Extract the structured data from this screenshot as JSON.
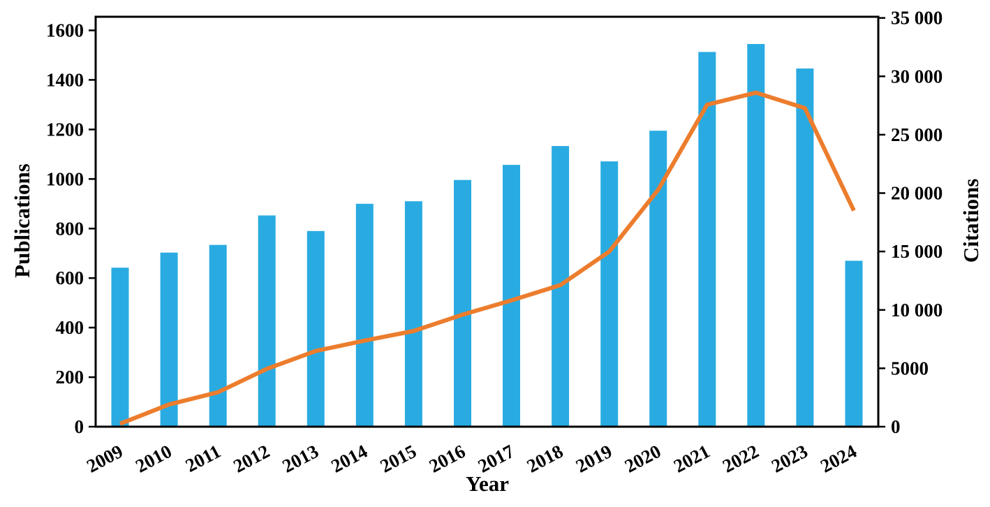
{
  "chart_data": {
    "type": "combo",
    "categories": [
      "2009",
      "2010",
      "2011",
      "2012",
      "2013",
      "2014",
      "2015",
      "2016",
      "2017",
      "2018",
      "2019",
      "2020",
      "2021",
      "2022",
      "2023",
      "2024"
    ],
    "series": [
      {
        "name": "Publications",
        "type": "bar",
        "axis": "left",
        "color": "#29ABE2",
        "values": [
          642,
          703,
          734,
          853,
          790,
          900,
          910,
          996,
          1057,
          1133,
          1071,
          1195,
          1513,
          1545,
          1446,
          670
        ]
      },
      {
        "name": "Citations",
        "type": "line",
        "axis": "right",
        "color": "#EC7D2D",
        "values": [
          250,
          1900,
          2950,
          4950,
          6480,
          7370,
          8190,
          9590,
          10820,
          12120,
          15000,
          20290,
          27570,
          28600,
          27270,
          18500
        ]
      }
    ],
    "title": "",
    "xlabel": "Year",
    "ylabel_left": "Publications",
    "ylabel_right": "Citations",
    "left_axis": {
      "min": 0,
      "max": 1655,
      "ticks": [
        0,
        200,
        400,
        600,
        800,
        1000,
        1200,
        1400,
        1600
      ],
      "tick_labels": [
        "0",
        "200",
        "400",
        "600",
        "800",
        "1000",
        "1200",
        "1400",
        "1600"
      ]
    },
    "right_axis": {
      "min": 0,
      "max": 35100,
      "ticks": [
        0,
        5000,
        10000,
        15000,
        20000,
        25000,
        30000,
        35000
      ],
      "tick_labels": [
        "0",
        "5000",
        "10 000",
        "15 000",
        "20 000",
        "25 000",
        "30 000",
        "35 000"
      ]
    },
    "grid": false,
    "legend": "none",
    "x_tick_rotation_deg": -28
  },
  "colors": {
    "background": "#FFFFFF",
    "axis": "#000000",
    "bar": "#29ABE2",
    "line": "#EC7D2D"
  }
}
